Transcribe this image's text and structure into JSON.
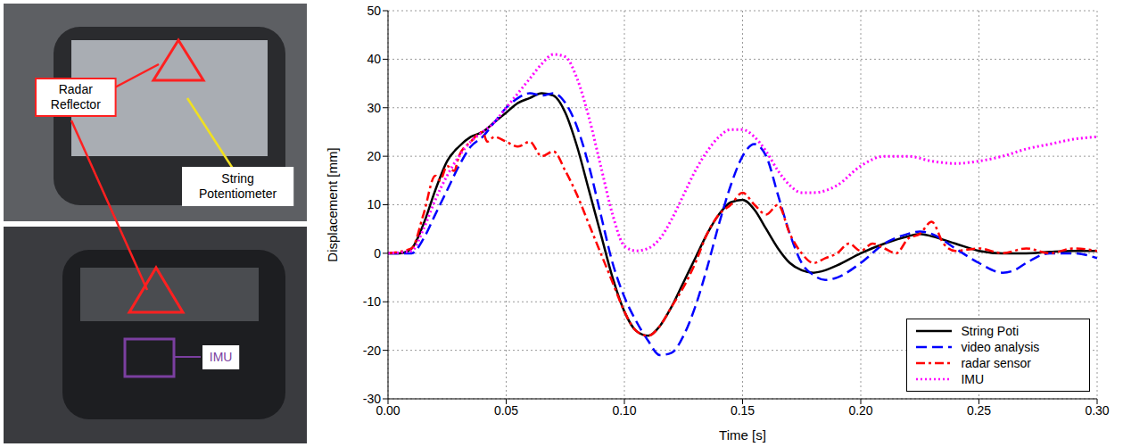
{
  "chart_data": {
    "type": "line",
    "x_label": "Time [s]",
    "y_label": "Displacement [mm]",
    "xlim": [
      0,
      0.3
    ],
    "xticks": [
      {
        "value": 0,
        "label": "0.00"
      },
      {
        "value": 0.05,
        "label": "0.05"
      },
      {
        "value": 0.1,
        "label": "0.10"
      },
      {
        "value": 0.15,
        "label": "0.15"
      },
      {
        "value": 0.2,
        "label": "0.20"
      },
      {
        "value": 0.25,
        "label": "0.25"
      },
      {
        "value": 0.3,
        "label": "0.30"
      }
    ],
    "ylim": [
      -30,
      50
    ],
    "yticks": [
      -30,
      -20,
      -10,
      0,
      10,
      20,
      30,
      40,
      50
    ],
    "grid": true,
    "legend": "lower right",
    "series": [
      {
        "name": "String Poti",
        "color": "#000000",
        "line_style": "solid",
        "x": [
          0,
          0.005,
          0.01,
          0.015,
          0.02,
          0.025,
          0.03,
          0.035,
          0.04,
          0.045,
          0.05,
          0.055,
          0.06,
          0.065,
          0.07,
          0.075,
          0.08,
          0.085,
          0.09,
          0.095,
          0.1,
          0.105,
          0.11,
          0.115,
          0.12,
          0.125,
          0.13,
          0.135,
          0.14,
          0.145,
          0.15,
          0.155,
          0.16,
          0.165,
          0.17,
          0.175,
          0.18,
          0.185,
          0.19,
          0.2,
          0.21,
          0.22,
          0.225,
          0.23,
          0.24,
          0.25,
          0.26,
          0.27,
          0.28,
          0.29,
          0.3
        ],
        "values": [
          0,
          0,
          1,
          6,
          13,
          19,
          22,
          24,
          25,
          27,
          29,
          31,
          32,
          33,
          32.5,
          29,
          22,
          13,
          4,
          -5,
          -12,
          -16,
          -17,
          -15,
          -11,
          -6,
          -1,
          4,
          8,
          10.5,
          11,
          9,
          5,
          1,
          -2,
          -3.5,
          -4,
          -3.5,
          -2.5,
          0,
          2,
          3.5,
          4,
          3.5,
          2,
          0.5,
          0,
          0,
          0.3,
          0.5,
          0.5
        ]
      },
      {
        "name": "video analysis",
        "color": "#0000ff",
        "line_style": "dashed",
        "x": [
          0,
          0.01,
          0.015,
          0.02,
          0.025,
          0.03,
          0.035,
          0.04,
          0.045,
          0.05,
          0.055,
          0.06,
          0.065,
          0.07,
          0.075,
          0.08,
          0.085,
          0.09,
          0.095,
          0.1,
          0.105,
          0.11,
          0.115,
          0.12,
          0.125,
          0.13,
          0.135,
          0.14,
          0.145,
          0.15,
          0.155,
          0.16,
          0.165,
          0.17,
          0.175,
          0.18,
          0.185,
          0.19,
          0.2,
          0.21,
          0.22,
          0.225,
          0.23,
          0.24,
          0.25,
          0.26,
          0.265,
          0.27,
          0.28,
          0.29,
          0.3
        ],
        "values": [
          0,
          0,
          3,
          8,
          13,
          18,
          22,
          24,
          27,
          30,
          32,
          33,
          32.5,
          33,
          31,
          26,
          18,
          8,
          -2,
          -9,
          -14,
          -18,
          -21,
          -20.5,
          -17,
          -11,
          -3,
          6,
          14,
          20,
          22.5,
          20,
          12,
          4,
          -2,
          -4.5,
          -5.5,
          -5,
          -2,
          2,
          4,
          4.5,
          4,
          1,
          -2,
          -4,
          -3.5,
          -2,
          0,
          0,
          -1
        ]
      },
      {
        "name": "radar sensor",
        "color": "#ff0000",
        "line_style": "dashdot",
        "x": [
          0,
          0.01,
          0.015,
          0.02,
          0.022,
          0.025,
          0.028,
          0.03,
          0.035,
          0.04,
          0.042,
          0.045,
          0.05,
          0.055,
          0.06,
          0.065,
          0.07,
          0.075,
          0.08,
          0.085,
          0.09,
          0.095,
          0.1,
          0.105,
          0.11,
          0.115,
          0.12,
          0.125,
          0.13,
          0.135,
          0.14,
          0.145,
          0.15,
          0.155,
          0.16,
          0.165,
          0.17,
          0.175,
          0.18,
          0.185,
          0.19,
          0.195,
          0.2,
          0.205,
          0.21,
          0.215,
          0.22,
          0.225,
          0.23,
          0.235,
          0.24,
          0.25,
          0.26,
          0.27,
          0.28,
          0.29,
          0.3
        ],
        "values": [
          0,
          1,
          8,
          16,
          15,
          18,
          17,
          20,
          23,
          25,
          23,
          24,
          23,
          22,
          23,
          20,
          21,
          17,
          12,
          6,
          0,
          -6,
          -12,
          -16,
          -17,
          -15,
          -11,
          -7,
          -2,
          4,
          8,
          10,
          12.5,
          10,
          8,
          10,
          4,
          0,
          -2,
          -1,
          0,
          2,
          0.5,
          2,
          1,
          0,
          3,
          4,
          6.5,
          2,
          0.5,
          1,
          0,
          1,
          0,
          1,
          0.5
        ]
      },
      {
        "name": "IMU",
        "color": "#ff00ff",
        "line_style": "dotted",
        "x": [
          0,
          0.01,
          0.015,
          0.02,
          0.025,
          0.03,
          0.035,
          0.04,
          0.045,
          0.05,
          0.055,
          0.06,
          0.065,
          0.07,
          0.075,
          0.08,
          0.085,
          0.09,
          0.095,
          0.1,
          0.105,
          0.11,
          0.115,
          0.12,
          0.125,
          0.13,
          0.135,
          0.14,
          0.145,
          0.15,
          0.155,
          0.16,
          0.165,
          0.17,
          0.175,
          0.18,
          0.19,
          0.2,
          0.21,
          0.22,
          0.23,
          0.24,
          0.25,
          0.26,
          0.27,
          0.28,
          0.29,
          0.3
        ],
        "values": [
          0,
          0.5,
          5,
          11,
          16,
          20,
          23,
          25,
          27,
          30,
          33,
          36,
          39,
          41,
          40.5,
          36,
          28,
          18,
          8,
          1.5,
          0.5,
          1,
          3,
          7,
          12,
          17,
          21,
          24,
          25.5,
          25.5,
          24,
          21,
          17,
          14,
          12.5,
          12.5,
          14,
          18,
          20,
          20,
          19,
          18.5,
          19,
          20,
          21.5,
          22.5,
          23.5,
          24
        ]
      }
    ]
  },
  "photo_labels": [
    "Radar Reflector",
    "String Potentiometer",
    "IMU"
  ]
}
